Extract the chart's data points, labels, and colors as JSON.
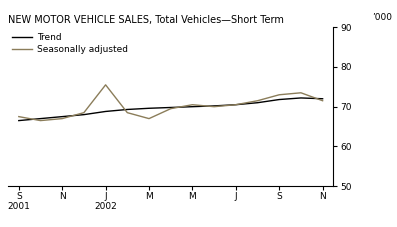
{
  "title": "NEW MOTOR VEHICLE SALES, Total Vehicles—Short Term",
  "ylabel": "’000",
  "ylim": [
    50,
    90
  ],
  "yticks": [
    50,
    60,
    70,
    80,
    90
  ],
  "xtick_labels": [
    "S\n2001",
    "N",
    "J\n2002",
    "M",
    "M",
    "J",
    "S",
    "N"
  ],
  "xtick_positions": [
    0,
    2,
    4,
    6,
    8,
    10,
    12,
    14
  ],
  "x_total": 14,
  "trend_x": [
    0,
    1,
    2,
    3,
    4,
    5,
    6,
    7,
    8,
    9,
    10,
    11,
    12,
    13,
    14
  ],
  "trend_y": [
    66.5,
    67.0,
    67.5,
    68.0,
    68.8,
    69.3,
    69.6,
    69.8,
    70.0,
    70.2,
    70.5,
    71.0,
    71.8,
    72.2,
    72.0
  ],
  "seasonal_x": [
    0,
    1,
    2,
    3,
    4,
    5,
    6,
    7,
    8,
    9,
    10,
    11,
    12,
    13,
    14
  ],
  "seasonal_y": [
    67.5,
    66.5,
    67.0,
    68.5,
    75.5,
    68.5,
    67.0,
    69.5,
    70.5,
    70.0,
    70.5,
    71.5,
    73.0,
    73.5,
    71.5
  ],
  "trend_color": "#000000",
  "seasonal_color": "#8b7d5a",
  "trend_lw": 1.0,
  "seasonal_lw": 1.0,
  "bg_color": "#ffffff",
  "legend_trend": "Trend",
  "legend_seasonal": "Seasonally adjusted",
  "title_fontsize": 7.0,
  "legend_fontsize": 6.5,
  "tick_fontsize": 6.5,
  "ytick_fontsize": 6.5
}
